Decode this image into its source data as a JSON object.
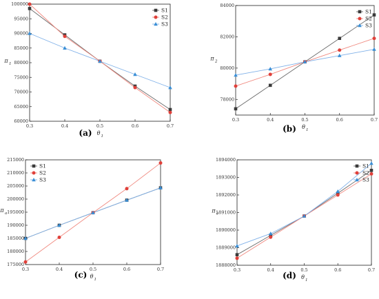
{
  "chart_data": [
    {
      "type": "line",
      "panel_label": "(a)",
      "ylabel": "π",
      "ylabel_sub": "1",
      "xlabel": "θ",
      "xlabel_sub": "1",
      "x": [
        0.3,
        0.4,
        0.5,
        0.6,
        0.7
      ],
      "xticks": [
        "0.3",
        "0.4",
        "0.5",
        "0.6",
        "0.7"
      ],
      "xlim": [
        0.3,
        0.7
      ],
      "ylim": [
        60000,
        100000
      ],
      "yticks": [
        "60000",
        "65000",
        "70000",
        "75000",
        "80000",
        "85000",
        "90000",
        "95000",
        "100000"
      ],
      "series": [
        {
          "name": "S1",
          "values": [
            98500,
            89500,
            80500,
            72000,
            64000
          ]
        },
        {
          "name": "S2",
          "values": [
            100000,
            89000,
            80500,
            71500,
            63000
          ]
        },
        {
          "name": "S3",
          "values": [
            90000,
            85000,
            80500,
            76000,
            71500
          ]
        }
      ],
      "legend": "top-right"
    },
    {
      "type": "line",
      "panel_label": "(b)",
      "ylabel": "π",
      "ylabel_sub": "2",
      "xlabel": "θ",
      "xlabel_sub": "1",
      "x": [
        0.3,
        0.4,
        0.5,
        0.6,
        0.7
      ],
      "xticks": [
        "0.3",
        "0.4",
        "0.5",
        "0.6",
        "0.7"
      ],
      "xlim": [
        0.3,
        0.7
      ],
      "ylim": [
        77000,
        84000
      ],
      "yticks": [
        "78000",
        "80000",
        "82000",
        "84000"
      ],
      "series": [
        {
          "name": "S1",
          "values": [
            77400,
            78900,
            80400,
            81900,
            83400
          ]
        },
        {
          "name": "S2",
          "values": [
            78850,
            79600,
            80400,
            81150,
            81900
          ]
        },
        {
          "name": "S3",
          "values": [
            79550,
            79950,
            80400,
            80800,
            81200
          ]
        }
      ],
      "legend": "top-right"
    },
    {
      "type": "line",
      "panel_label": "(c)",
      "ylabel": "π",
      "ylabel_sub": "a",
      "xlabel": "θ",
      "xlabel_sub": "1",
      "x": [
        0.3,
        0.4,
        0.5,
        0.6,
        0.7
      ],
      "xticks": [
        "0.3",
        "0.4",
        "0.5",
        "0.6",
        "0.7"
      ],
      "xlim": [
        0.3,
        0.7
      ],
      "ylim": [
        175000,
        215000
      ],
      "yticks": [
        "175000",
        "180000",
        "185000",
        "190000",
        "195000",
        "200000",
        "205000",
        "210000",
        "215000"
      ],
      "series": [
        {
          "name": "S1",
          "values": [
            185000,
            190000,
            194800,
            199600,
            204300
          ]
        },
        {
          "name": "S2",
          "values": [
            176000,
            185400,
            194800,
            204000,
            213800
          ]
        },
        {
          "name": "S3",
          "values": [
            185000,
            190000,
            194800,
            199600,
            204300
          ]
        }
      ],
      "legend": "top-left"
    },
    {
      "type": "line",
      "panel_label": "(d)",
      "ylabel": "π",
      "ylabel_sub": "e",
      "xlabel": "θ",
      "xlabel_sub": "1",
      "x": [
        0.3,
        0.4,
        0.5,
        0.6,
        0.7
      ],
      "xticks": [
        "0.3",
        "0.4",
        "0.5",
        "0.6",
        "0.7"
      ],
      "xlim": [
        0.3,
        0.7
      ],
      "ylim": [
        1888000,
        1894000
      ],
      "yticks": [
        "1888000",
        "1889000",
        "1890000",
        "1891000",
        "1892000",
        "1893000",
        "1894000"
      ],
      "series": [
        {
          "name": "S1",
          "values": [
            1888600,
            1889700,
            1890800,
            1892100,
            1893400
          ]
        },
        {
          "name": "S2",
          "values": [
            1888400,
            1889600,
            1890800,
            1892000,
            1893200
          ]
        },
        {
          "name": "S3",
          "values": [
            1889100,
            1889800,
            1890800,
            1892200,
            1893800
          ]
        }
      ],
      "legend": "top-right"
    }
  ],
  "series_colors": [
    "#3a3a3a",
    "#e0403a",
    "#3a8fd6"
  ],
  "series_line_colors": [
    "#6a6a6a",
    "#f08a80",
    "#7fb0e8"
  ],
  "series_markers": [
    "square",
    "circle",
    "triangle"
  ]
}
